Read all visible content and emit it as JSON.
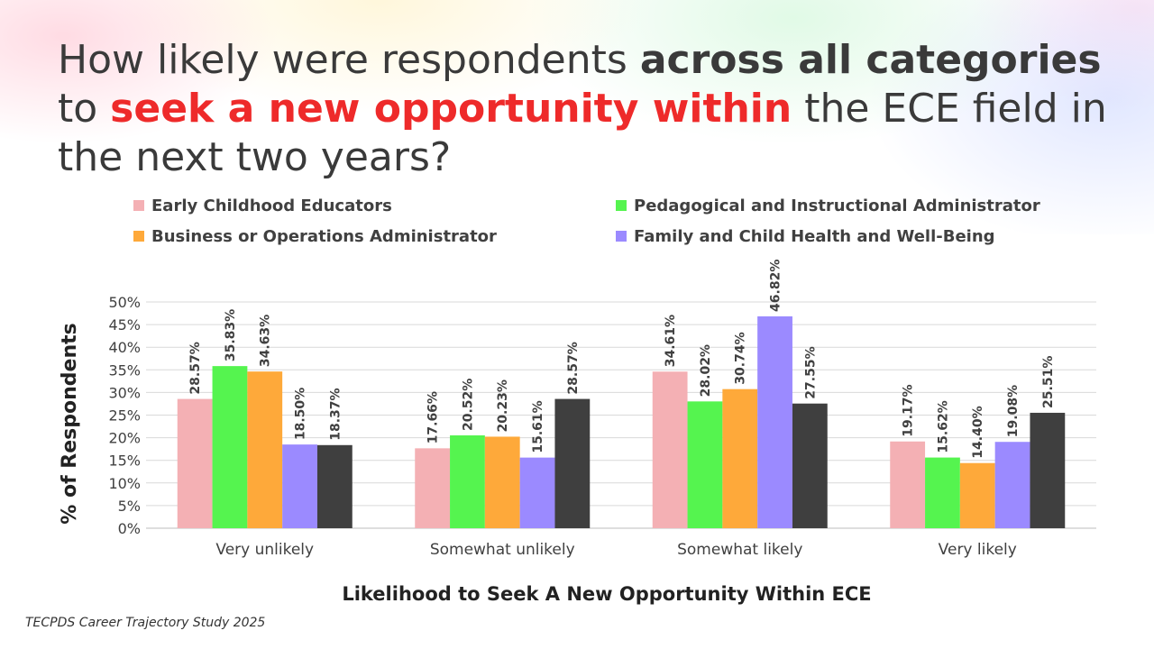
{
  "title": {
    "part1": "How likely were respondents ",
    "bold1": "across all categories",
    "part2": " to ",
    "highlight": "seek a new opportunity within",
    "part3": " the ECE field in the next two years?"
  },
  "source": "TECPDS Career Trajectory Study 2025",
  "colors": {
    "series": [
      "#f4b0b4",
      "#55f44f",
      "#fea93a",
      "#9b8aff",
      "#3f3f3f"
    ],
    "highlight": "#ee2a2a"
  },
  "chart_data": {
    "type": "bar",
    "categories": [
      "Very unlikely",
      "Somewhat unlikely",
      "Somewhat likely",
      "Very likely"
    ],
    "series": [
      {
        "name": "Early Childhood Educators",
        "values": [
          28.57,
          17.66,
          34.61,
          19.17
        ],
        "labels": [
          "28.57%",
          "17.66%",
          "34.61%",
          "19.17%"
        ]
      },
      {
        "name": "Pedagogical and Instructional Administrator",
        "values": [
          35.83,
          20.52,
          28.02,
          15.62
        ],
        "labels": [
          "35.83%",
          "20.52%",
          "28.02%",
          "15.62%"
        ]
      },
      {
        "name": "Business or Operations Administrator",
        "values": [
          34.63,
          20.23,
          30.74,
          14.4
        ],
        "labels": [
          "34.63%",
          "20.23%",
          "30.74%",
          "14.40%"
        ]
      },
      {
        "name": "Family and Child Health and Well-Being",
        "values": [
          18.5,
          15.61,
          46.82,
          19.08
        ],
        "labels": [
          "18.50%",
          "15.61%",
          "46.82%",
          "19.08%"
        ]
      },
      {
        "values": [
          18.37,
          28.57,
          27.55,
          25.51
        ],
        "labels": [
          "18.37%",
          "28.57%",
          "27.55%",
          "25.51%"
        ]
      }
    ],
    "xlabel": "Likelihood to Seek A New Opportunity Within ECE",
    "ylabel": "% of Respondents",
    "ylim": [
      0,
      50
    ],
    "yticks": [
      "0%",
      "5%",
      "10%",
      "15%",
      "20%",
      "25%",
      "30%",
      "35%",
      "40%",
      "45%",
      "50%"
    ],
    "grid": true,
    "legend": "top"
  }
}
